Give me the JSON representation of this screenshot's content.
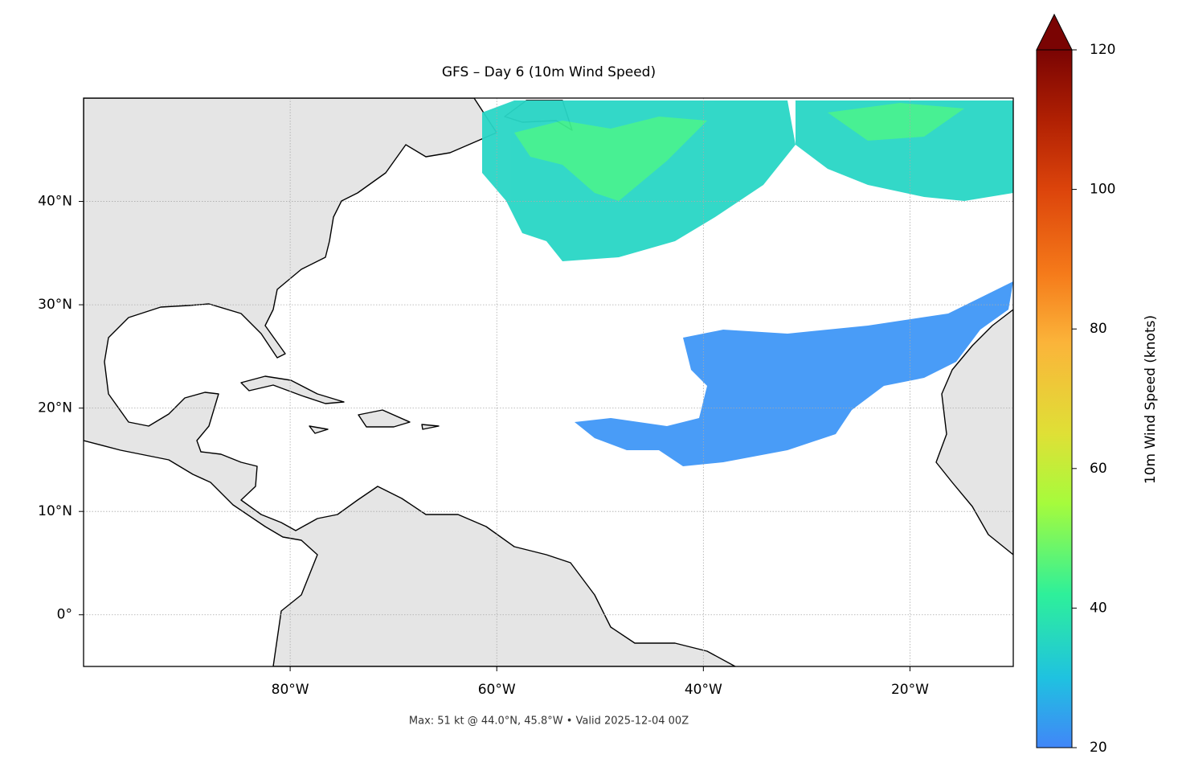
{
  "map": {
    "title": "GFS – Day 6 (10m Wind Speed)",
    "footer": "Max: 51 kt @ 44.0°N, 45.8°W • Valid 2025-12-04 00Z",
    "xlim": [
      -100,
      -10
    ],
    "ylim": [
      -5,
      50
    ],
    "xticks": [
      {
        "value": -80,
        "label": "80°W"
      },
      {
        "value": -60,
        "label": "60°W"
      },
      {
        "value": -40,
        "label": "40°W"
      },
      {
        "value": -20,
        "label": "20°W"
      }
    ],
    "yticks": [
      {
        "value": 0,
        "label": "0°"
      },
      {
        "value": 10,
        "label": "10°N"
      },
      {
        "value": 20,
        "label": "20°N"
      },
      {
        "value": 30,
        "label": "30°N"
      },
      {
        "value": 40,
        "label": "40°N"
      }
    ],
    "grid": true,
    "colorbar": {
      "label": "10m Wind Speed (knots)",
      "lim": [
        20,
        120
      ],
      "ticks": [
        20,
        40,
        60,
        80,
        100,
        120
      ]
    }
  }
}
